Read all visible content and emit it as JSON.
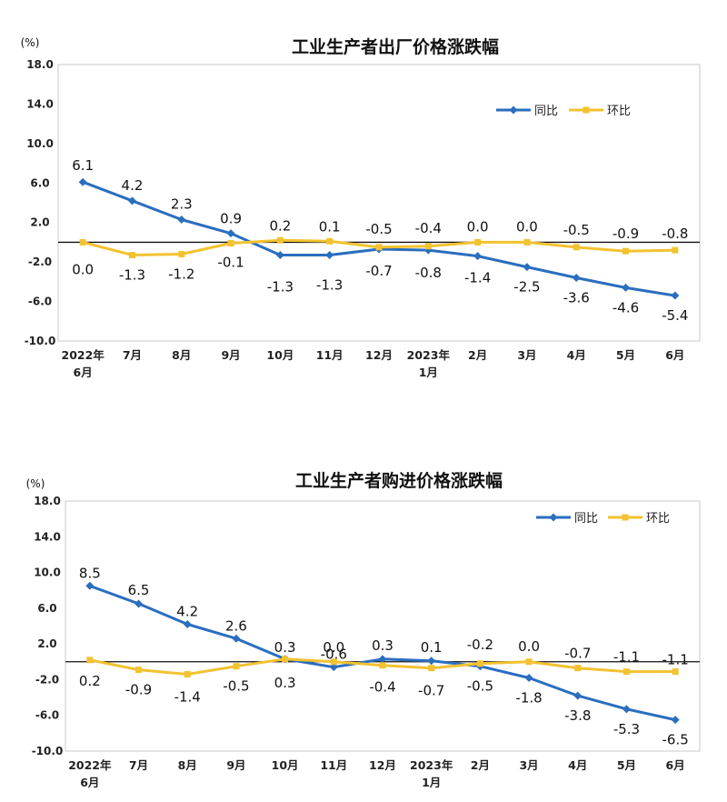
{
  "chart_data": [
    {
      "type": "line",
      "title": "工业生产者出厂价格涨跌幅",
      "unit": "(%)",
      "categories": [
        [
          "2022年",
          "6月"
        ],
        [
          "7月"
        ],
        [
          "8月"
        ],
        [
          "9月"
        ],
        [
          "10月"
        ],
        [
          "11月"
        ],
        [
          "12月"
        ],
        [
          "2023年",
          "1月"
        ],
        [
          "2月"
        ],
        [
          "3月"
        ],
        [
          "4月"
        ],
        [
          "5月"
        ],
        [
          "6月"
        ]
      ],
      "ylim": [
        -10.0,
        18.0
      ],
      "yticks": [
        "18.0",
        "14.0",
        "10.0",
        "6.0",
        "2.0",
        "-2.0",
        "-6.0",
        "-10.0"
      ],
      "legend_position": "top-right",
      "series": [
        {
          "name": "同比",
          "color": "#2a6ebf",
          "marker": "diamond",
          "values": [
            6.1,
            4.2,
            2.3,
            0.9,
            -1.3,
            -1.3,
            -0.7,
            -0.8,
            -1.4,
            -2.5,
            -3.6,
            -4.6,
            -5.4
          ],
          "labels": [
            "6.1",
            "4.2",
            "2.3",
            "0.9",
            "-1.3",
            "-1.3",
            "-0.7",
            "-0.8",
            "-1.4",
            "-2.5",
            "-3.6",
            "-4.6",
            "-5.4"
          ]
        },
        {
          "name": "环比",
          "color": "#f2c230",
          "marker": "square",
          "values": [
            0.0,
            -1.3,
            -1.2,
            -0.1,
            0.2,
            0.1,
            -0.5,
            -0.4,
            0.0,
            0.0,
            -0.5,
            -0.9,
            -0.8
          ],
          "labels": [
            "0.0",
            "-1.3",
            "-1.2",
            "-0.1",
            "0.2",
            "0.1",
            "-0.5",
            "-0.4",
            "0.0",
            "0.0",
            "-0.5",
            "-0.9",
            "-0.8"
          ]
        }
      ]
    },
    {
      "type": "line",
      "title": "工业生产者购进价格涨跌幅",
      "unit": "(%)",
      "categories": [
        [
          "2022年",
          "6月"
        ],
        [
          "7月"
        ],
        [
          "8月"
        ],
        [
          "9月"
        ],
        [
          "10月"
        ],
        [
          "11月"
        ],
        [
          "12月"
        ],
        [
          "2023年",
          "1月"
        ],
        [
          "2月"
        ],
        [
          "3月"
        ],
        [
          "4月"
        ],
        [
          "5月"
        ],
        [
          "6月"
        ]
      ],
      "ylim": [
        -10.0,
        18.0
      ],
      "yticks": [
        "18.0",
        "14.0",
        "10.0",
        "6.0",
        "2.0",
        "-2.0",
        "-6.0",
        "-10.0"
      ],
      "legend_position": "top-right",
      "series": [
        {
          "name": "同比",
          "color": "#2a6ebf",
          "marker": "diamond",
          "values": [
            8.5,
            6.5,
            4.2,
            2.6,
            0.3,
            -0.6,
            0.3,
            0.1,
            -0.5,
            -1.8,
            -3.8,
            -5.3,
            -6.5
          ],
          "labels": [
            "8.5",
            "6.5",
            "4.2",
            "2.6",
            "0.3",
            "-0.6",
            "0.3",
            "0.1",
            "-0.5",
            "-1.8",
            "-3.8",
            "-5.3",
            "-6.5"
          ]
        },
        {
          "name": "环比",
          "color": "#f2c230",
          "marker": "square",
          "values": [
            0.2,
            -0.9,
            -1.4,
            -0.5,
            0.3,
            0.0,
            -0.4,
            -0.7,
            -0.2,
            0.0,
            -0.7,
            -1.1,
            -1.1
          ],
          "labels": [
            "0.2",
            "-0.9",
            "-1.4",
            "-0.5",
            "0.3",
            "0.0",
            "-0.4",
            "-0.7",
            "-0.2",
            "0.0",
            "-0.7",
            "-1.1",
            "-1.1"
          ]
        }
      ]
    }
  ]
}
